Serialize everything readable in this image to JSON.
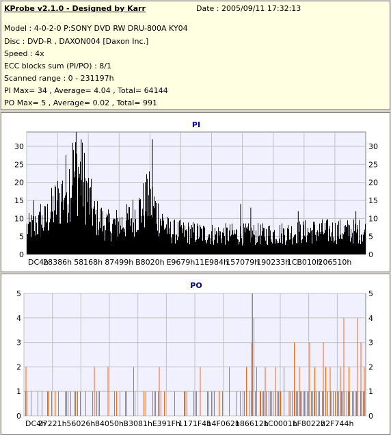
{
  "header": {
    "title": "KProbe v2.1.0 - Designed by Karr",
    "date": "Date : 2005/09/11 17:32:13",
    "model": "Model : 4-0-2-0 P:SONY    DVD RW DRU-800A  KY04",
    "disc": "Disc : DVD-R , DAXON004 [Daxon Inc.]",
    "speed": "Speed : 4x",
    "ecc": "ECC blocks sum (PI/PO) : 8/1",
    "range": "Scanned range : 0 - 231197h",
    "pi": "PI Max= 34 , Average= 4.04 , Total= 64144",
    "po": "PO Max= 5 , Average= 0.02 , Total= 991"
  },
  "chart_data": [
    {
      "type": "bar",
      "title": "PI",
      "ylim": [
        0,
        34
      ],
      "yticks": [
        0,
        5,
        10,
        15,
        20,
        25,
        30
      ],
      "xticks": [
        "DC4h",
        "28386h",
        "58168h",
        "87499h",
        "B8020h",
        "E9679h",
        "11E984h",
        "157079h",
        "190233h",
        "1CB010h",
        "206510h"
      ],
      "x_range_hex": [
        "DC4h",
        "231197h"
      ],
      "grid": true,
      "color": "#000000",
      "profile": [
        {
          "x": 0.0,
          "y": 9
        },
        {
          "x": 0.05,
          "y": 11
        },
        {
          "x": 0.1,
          "y": 20
        },
        {
          "x": 0.13,
          "y": 26
        },
        {
          "x": 0.15,
          "y": 29
        },
        {
          "x": 0.17,
          "y": 24
        },
        {
          "x": 0.2,
          "y": 13
        },
        {
          "x": 0.24,
          "y": 10
        },
        {
          "x": 0.29,
          "y": 11
        },
        {
          "x": 0.33,
          "y": 15
        },
        {
          "x": 0.36,
          "y": 19
        },
        {
          "x": 0.39,
          "y": 13
        },
        {
          "x": 0.42,
          "y": 8
        },
        {
          "x": 0.55,
          "y": 7
        },
        {
          "x": 0.7,
          "y": 7
        },
        {
          "x": 0.85,
          "y": 8
        },
        {
          "x": 1.0,
          "y": 8
        }
      ],
      "spikes": [
        {
          "x": 0.145,
          "y": 34
        },
        {
          "x": 0.16,
          "y": 32
        },
        {
          "x": 0.135,
          "y": 31
        },
        {
          "x": 0.37,
          "y": 32
        },
        {
          "x": 0.355,
          "y": 21
        },
        {
          "x": 0.02,
          "y": 15
        },
        {
          "x": 0.04,
          "y": 14
        },
        {
          "x": 0.63,
          "y": 14
        },
        {
          "x": 0.66,
          "y": 13
        },
        {
          "x": 0.8,
          "y": 12
        },
        {
          "x": 0.97,
          "y": 12
        }
      ]
    },
    {
      "type": "bar",
      "title": "PO",
      "ylim": [
        0,
        5
      ],
      "yticks": [
        0,
        1,
        2,
        3,
        4,
        5
      ],
      "xticks": [
        "DC4h",
        "27221h",
        "56026h",
        "84050h",
        "B3081h",
        "E391Fh",
        "1171F4h",
        "14F062h",
        "186612h",
        "1C0001h",
        "1F8022h",
        "22F744h"
      ],
      "x_range_hex": [
        "DC4h",
        "231197h"
      ],
      "grid": true,
      "color": "#ff6600",
      "events": [
        {
          "x": 0.005,
          "y": 2
        },
        {
          "x": 0.02,
          "y": 1
        },
        {
          "x": 0.04,
          "y": 1
        },
        {
          "x": 0.07,
          "y": 1
        },
        {
          "x": 0.09,
          "y": 1
        },
        {
          "x": 0.12,
          "y": 1
        },
        {
          "x": 0.15,
          "y": 1
        },
        {
          "x": 0.18,
          "y": 1
        },
        {
          "x": 0.205,
          "y": 2
        },
        {
          "x": 0.22,
          "y": 1
        },
        {
          "x": 0.245,
          "y": 2
        },
        {
          "x": 0.27,
          "y": 1
        },
        {
          "x": 0.3,
          "y": 1
        },
        {
          "x": 0.32,
          "y": 2
        },
        {
          "x": 0.35,
          "y": 1
        },
        {
          "x": 0.38,
          "y": 1
        },
        {
          "x": 0.395,
          "y": 2
        },
        {
          "x": 0.41,
          "y": 1
        },
        {
          "x": 0.44,
          "y": 1
        },
        {
          "x": 0.47,
          "y": 1
        },
        {
          "x": 0.5,
          "y": 1
        },
        {
          "x": 0.515,
          "y": 2
        },
        {
          "x": 0.54,
          "y": 1
        },
        {
          "x": 0.57,
          "y": 1
        },
        {
          "x": 0.6,
          "y": 2
        },
        {
          "x": 0.62,
          "y": 1
        },
        {
          "x": 0.65,
          "y": 2
        },
        {
          "x": 0.665,
          "y": 3
        },
        {
          "x": 0.668,
          "y": 5
        },
        {
          "x": 0.672,
          "y": 4
        },
        {
          "x": 0.68,
          "y": 2
        },
        {
          "x": 0.69,
          "y": 1
        },
        {
          "x": 0.705,
          "y": 2
        },
        {
          "x": 0.72,
          "y": 1
        },
        {
          "x": 0.735,
          "y": 2
        },
        {
          "x": 0.75,
          "y": 1
        },
        {
          "x": 0.76,
          "y": 2
        },
        {
          "x": 0.775,
          "y": 1
        },
        {
          "x": 0.79,
          "y": 3
        },
        {
          "x": 0.805,
          "y": 2
        },
        {
          "x": 0.82,
          "y": 1
        },
        {
          "x": 0.835,
          "y": 3
        },
        {
          "x": 0.85,
          "y": 2
        },
        {
          "x": 0.86,
          "y": 1
        },
        {
          "x": 0.875,
          "y": 3
        },
        {
          "x": 0.882,
          "y": 2
        },
        {
          "x": 0.895,
          "y": 2
        },
        {
          "x": 0.91,
          "y": 1
        },
        {
          "x": 0.925,
          "y": 2
        },
        {
          "x": 0.935,
          "y": 4
        },
        {
          "x": 0.95,
          "y": 2
        },
        {
          "x": 0.96,
          "y": 1
        },
        {
          "x": 0.975,
          "y": 4
        },
        {
          "x": 0.985,
          "y": 3
        },
        {
          "x": 0.995,
          "y": 2
        }
      ],
      "density": [
        {
          "x": 0.0,
          "y": 0.25
        },
        {
          "x": 0.4,
          "y": 0.25
        },
        {
          "x": 0.62,
          "y": 0.4
        },
        {
          "x": 0.75,
          "y": 0.75
        },
        {
          "x": 1.0,
          "y": 0.85
        }
      ]
    }
  ]
}
